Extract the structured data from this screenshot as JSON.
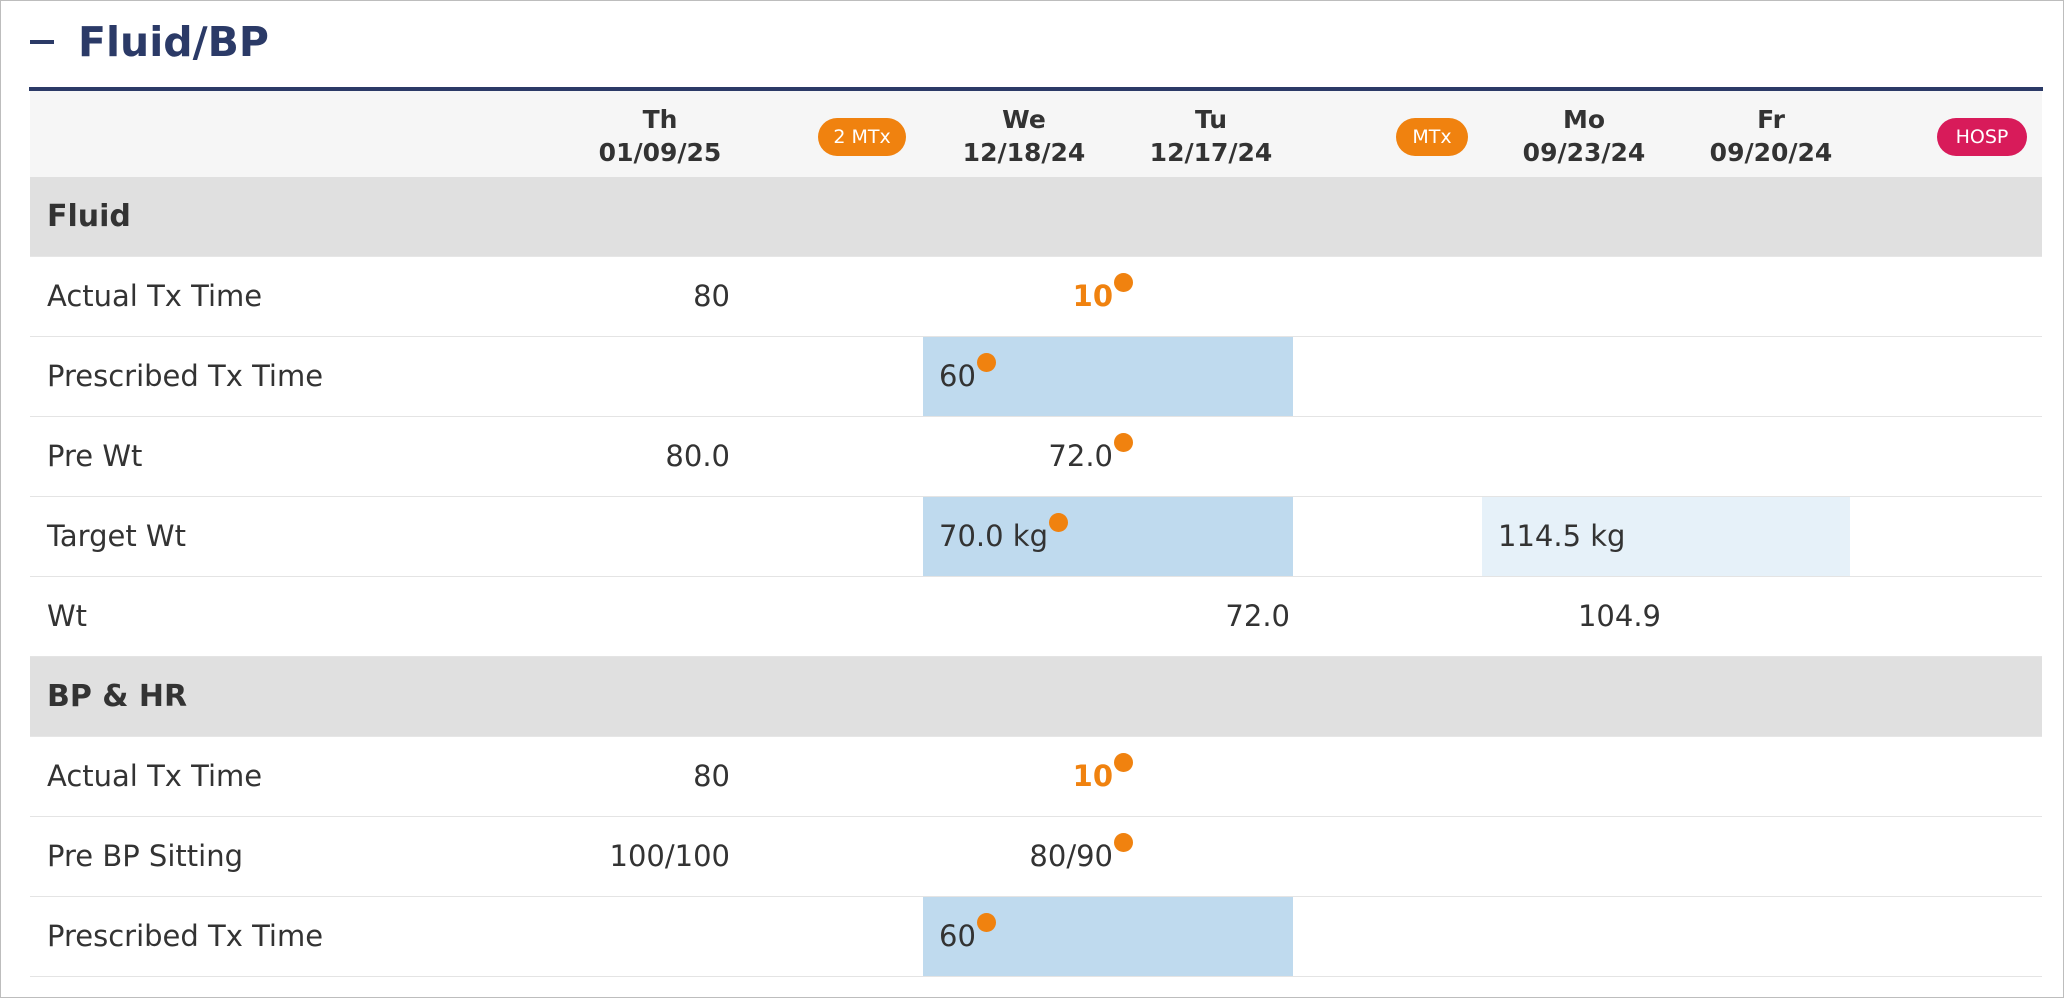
{
  "section": {
    "title": "Fluid/BP"
  },
  "columns": [
    {
      "day": "Th",
      "date": "01/09/25"
    },
    {
      "day": "We",
      "date": "12/18/24"
    },
    {
      "day": "Tu",
      "date": "12/17/24"
    },
    {
      "day": "Mo",
      "date": "09/23/24"
    },
    {
      "day": "Fr",
      "date": "09/20/24"
    }
  ],
  "badges": {
    "two_mtx": "2 MTx",
    "mtx": "MTx",
    "hosp": "HOSP"
  },
  "groups": {
    "fluid": {
      "label": "Fluid",
      "actual_tx_time": {
        "label": "Actual Tx Time",
        "th": "80",
        "we": "10"
      },
      "prescribed_tx_time": {
        "label": "Prescribed Tx Time",
        "we": "60"
      },
      "pre_wt": {
        "label": "Pre Wt",
        "th": "80.0",
        "we": "72.0"
      },
      "target_wt": {
        "label": "Target Wt",
        "we": "70.0 kg",
        "mo": "114.5 kg"
      },
      "wt": {
        "label": "Wt",
        "tu": "72.0",
        "mo": "104.9"
      }
    },
    "bp_hr": {
      "label": "BP & HR",
      "actual_tx_time": {
        "label": "Actual Tx Time",
        "th": "80",
        "we": "10"
      },
      "pre_bp_sitting": {
        "label": "Pre BP Sitting",
        "th": "100/100",
        "we": "80/90"
      },
      "prescribed_tx_time": {
        "label": "Prescribed Tx Time",
        "we": "60"
      }
    }
  },
  "colors": {
    "accent_navy": "#2b3a67",
    "alert_orange": "#f0820f",
    "hosp_red": "#d81b5a",
    "highlight_blue": "#bfdaee"
  }
}
